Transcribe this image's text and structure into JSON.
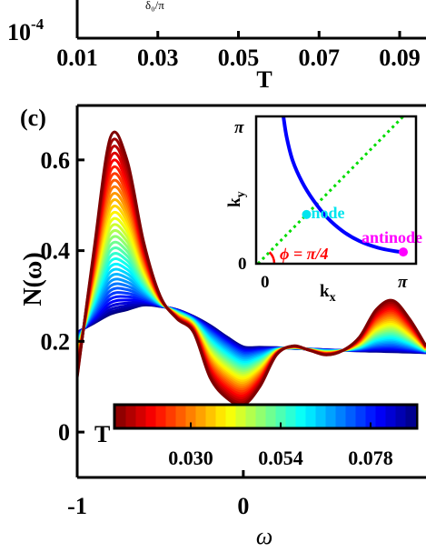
{
  "top_panel": {
    "ytick": "10",
    "ytick_exp": "-4",
    "xticks": [
      "0.01",
      "0.03",
      "0.05",
      "0.07",
      "0.09"
    ],
    "xlabel": "T",
    "fragment": "δ₀/π"
  },
  "chart_data": {
    "type": "line",
    "panel_label": "(c)",
    "xlabel": "ω",
    "ylabel": "N(ω)",
    "xlim": [
      -1,
      1.1
    ],
    "ylim": [
      -0.1,
      0.72
    ],
    "xticks": [
      -1,
      0
    ],
    "xtick_labels": [
      "-1",
      "0"
    ],
    "yticks": [
      0,
      0.2,
      0.4,
      0.6
    ],
    "ytick_labels": [
      "0",
      "0.2",
      "0.4",
      "0.6"
    ],
    "series_description": "family of curves, one per temperature T, colored by T",
    "T_range": [
      0.01,
      0.09
    ],
    "n_curves": 34,
    "curve_low_T": {
      "x": [
        -1.0,
        -0.9,
        -0.8,
        -0.7,
        -0.6,
        -0.5,
        -0.4,
        -0.3,
        -0.2,
        -0.1,
        0.0,
        0.1,
        0.2,
        0.3,
        0.4,
        0.5,
        0.6,
        0.7,
        0.8,
        0.9,
        1.0,
        1.1
      ],
      "y": [
        0.12,
        0.4,
        0.65,
        0.6,
        0.42,
        0.3,
        0.25,
        0.22,
        0.12,
        0.075,
        0.06,
        0.1,
        0.17,
        0.19,
        0.18,
        0.17,
        0.18,
        0.21,
        0.27,
        0.29,
        0.25,
        0.19
      ]
    },
    "curve_high_T": {
      "x": [
        -1.0,
        -0.8,
        -0.6,
        -0.5,
        -0.4,
        -0.3,
        -0.2,
        -0.1,
        0.0,
        0.2,
        0.4,
        0.6,
        0.8,
        1.0,
        1.1
      ],
      "y": [
        0.22,
        0.26,
        0.28,
        0.277,
        0.27,
        0.255,
        0.235,
        0.21,
        0.188,
        0.186,
        0.183,
        0.18,
        0.178,
        0.176,
        0.175
      ]
    },
    "colorbar": {
      "label": "T",
      "ticks": [
        0.03,
        0.054,
        0.078
      ],
      "tick_labels": [
        "0.030",
        "0.054",
        "0.078"
      ],
      "range": [
        0.01,
        0.09
      ],
      "colors": [
        "#7f0000",
        "#ff0000",
        "#ff8000",
        "#ffff00",
        "#80ff80",
        "#00ffff",
        "#0080ff",
        "#0000ff",
        "#00007f"
      ]
    },
    "inset": {
      "xlabel": "k",
      "xlabel_sub": "x",
      "ylabel": "k",
      "ylabel_sub": "y",
      "xtick_labels": [
        "0",
        "π"
      ],
      "ytick_labels": [
        "0",
        "π"
      ],
      "xlim": [
        0,
        3.1416
      ],
      "ylim": [
        0,
        3.1416
      ],
      "fermi_surface": {
        "color": "#0000ff",
        "x": [
          0.55,
          0.62,
          0.75,
          0.95,
          1.2,
          1.5,
          1.85,
          2.2,
          2.6,
          2.95,
          3.1416
        ],
        "y": [
          3.1416,
          2.7,
          2.2,
          1.75,
          1.35,
          0.98,
          0.68,
          0.48,
          0.34,
          0.27,
          0.25
        ]
      },
      "diagonal": {
        "color": "#00dd00",
        "x": [
          0,
          3.1416
        ],
        "y": [
          0,
          3.1416
        ]
      },
      "node": {
        "label": "node",
        "color": "#00e5ee",
        "x": 1.05,
        "y": 1.05
      },
      "antinode": {
        "label": "antinode",
        "color": "#ff00ff",
        "x": 3.1416,
        "y": 0.25
      },
      "angle_label": "ϕ = π/4",
      "angle_color": "#ff0000"
    }
  }
}
